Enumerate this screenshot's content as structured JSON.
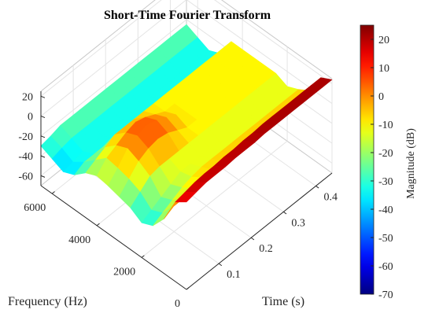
{
  "chart_data": {
    "type": "surface",
    "title": "Short-Time Fourier Transform",
    "xlabel": "Time (s)",
    "ylabel": "Frequency (Hz)",
    "zlabel": "",
    "colorbar_label": "Magnitude (dB)",
    "xlim": [
      0,
      0.45
    ],
    "ylim": [
      0,
      6500
    ],
    "zlim": [
      -70,
      25
    ],
    "clim": [
      -70,
      25
    ],
    "colormap": "jet",
    "x_ticks": [
      "0.1",
      "0.2",
      "0.3",
      "0.4"
    ],
    "x_tick_values": [
      0.1,
      0.2,
      0.3,
      0.4
    ],
    "y_ticks": [
      "0",
      "2000",
      "4000",
      "6000"
    ],
    "y_tick_values": [
      0,
      2000,
      4000,
      6000
    ],
    "z_ticks": [
      "20",
      "0",
      "-20",
      "-40",
      "-60"
    ],
    "z_tick_values": [
      20,
      0,
      -20,
      -40,
      -60
    ],
    "colorbar_ticks": [
      "20",
      "10",
      "0",
      "-10",
      "-20",
      "-30",
      "-40",
      "-50",
      "-60",
      "-70"
    ],
    "colorbar_tick_values": [
      20,
      10,
      0,
      -10,
      -20,
      -30,
      -40,
      -50,
      -60,
      -70
    ],
    "grid": true,
    "time_axis": [
      0.0,
      0.03,
      0.06,
      0.09,
      0.12,
      0.15,
      0.18,
      0.21,
      0.24,
      0.27,
      0.3,
      0.33,
      0.36,
      0.39,
      0.42,
      0.45
    ],
    "frequency_axis": [
      0,
      500,
      1000,
      1500,
      2000,
      2500,
      3000,
      3500,
      4000,
      4500,
      5000,
      5500,
      6000,
      6500
    ],
    "magnitude_db": [
      [
        18,
        20,
        22,
        22,
        22,
        23,
        23,
        23,
        24,
        24,
        24,
        24,
        24,
        24,
        24,
        24
      ],
      [
        10,
        12,
        14,
        15,
        15,
        16,
        16,
        17,
        17,
        18,
        18,
        18,
        18,
        18,
        18,
        18
      ],
      [
        -15,
        -10,
        -10,
        -8,
        -5,
        -5,
        -4,
        -3,
        -3,
        -3,
        -3,
        -3,
        -3,
        -3,
        -3,
        -3
      ],
      [
        -30,
        -25,
        -20,
        -15,
        -12,
        -10,
        -10,
        -10,
        -10,
        -10,
        -10,
        -10,
        -10,
        -10,
        -10,
        -10
      ],
      [
        -35,
        -30,
        -25,
        -20,
        -15,
        -15,
        -15,
        -15,
        -15,
        -15,
        -15,
        -15,
        -15,
        -15,
        -15,
        -15
      ],
      [
        -28,
        -20,
        -12,
        -10,
        -10,
        -10,
        -10,
        -10,
        -10,
        -10,
        -10,
        -10,
        -10,
        -10,
        -10,
        -10
      ],
      [
        -25,
        -15,
        -5,
        0,
        2,
        0,
        -5,
        -10,
        -10,
        -10,
        -10,
        -10,
        -10,
        -10,
        -10,
        -10
      ],
      [
        -22,
        -12,
        0,
        5,
        8,
        5,
        0,
        -5,
        -10,
        -10,
        -10,
        -10,
        -10,
        -10,
        -10,
        -10
      ],
      [
        -20,
        -10,
        -5,
        0,
        3,
        0,
        -5,
        -10,
        -10,
        -10,
        -10,
        -10,
        -10,
        -10,
        -10,
        -10
      ],
      [
        -25,
        -20,
        -15,
        -10,
        -10,
        -10,
        -10,
        -10,
        -10,
        -10,
        -10,
        -10,
        -10,
        -10,
        -10,
        -10
      ],
      [
        -35,
        -30,
        -30,
        -30,
        -30,
        -30,
        -30,
        -30,
        -30,
        -30,
        -30,
        -30,
        -30,
        -30,
        -30,
        -30
      ],
      [
        -40,
        -38,
        -35,
        -35,
        -35,
        -35,
        -35,
        -35,
        -35,
        -35,
        -35,
        -35,
        -35,
        -35,
        -35,
        -35
      ],
      [
        -35,
        -32,
        -30,
        -30,
        -30,
        -30,
        -30,
        -30,
        -30,
        -30,
        -30,
        -30,
        -30,
        -30,
        -30,
        -30
      ],
      [
        -30,
        -28,
        -25,
        -25,
        -25,
        -25,
        -25,
        -25,
        -25,
        -25,
        -25,
        -25,
        -25,
        -25,
        -25,
        -25
      ]
    ]
  }
}
